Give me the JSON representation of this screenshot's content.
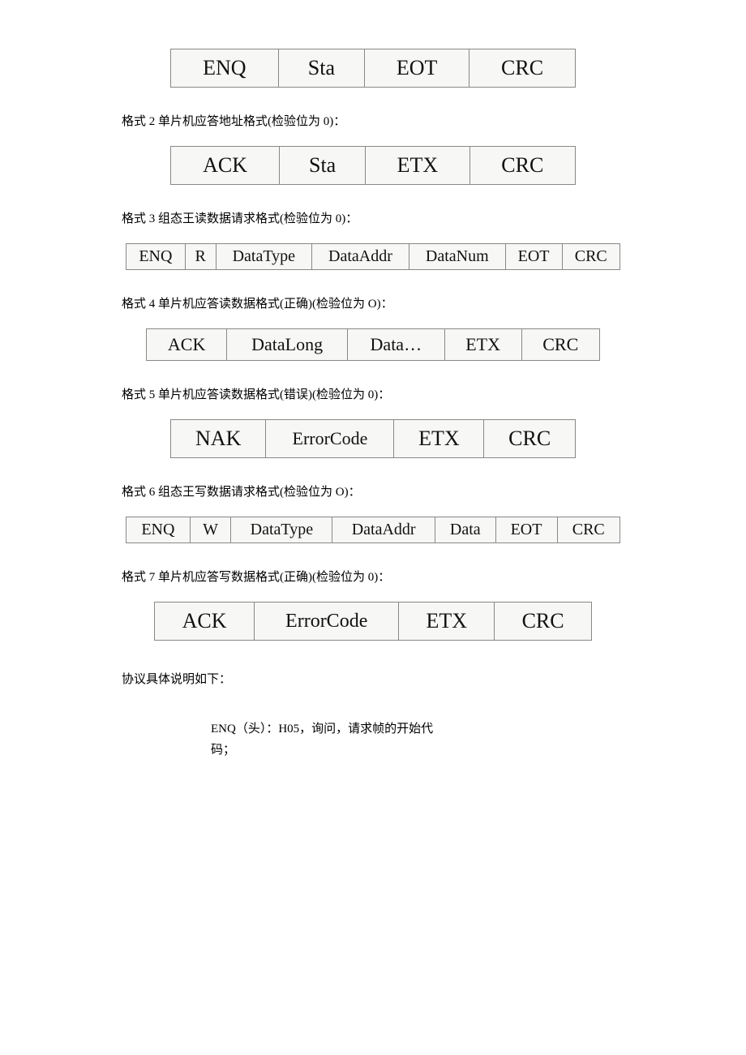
{
  "tables": {
    "t1": {
      "cells": [
        "ENQ",
        "Sta",
        "EOT",
        "CRC"
      ]
    },
    "t2": {
      "cells": [
        "ACK",
        "Sta",
        "ETX",
        "CRC"
      ]
    },
    "t3": {
      "cells": [
        "ENQ",
        "R",
        "DataType",
        "DataAddr",
        "DataNum",
        "EOT",
        "CRC"
      ]
    },
    "t4": {
      "cells": [
        "ACK",
        "DataLong",
        "Data…",
        "ETX",
        "CRC"
      ]
    },
    "t5": {
      "cells": [
        "NAK",
        "ErrorCode",
        "ETX",
        "CRC"
      ]
    },
    "t6": {
      "cells": [
        "ENQ",
        "W",
        "DataType",
        "DataAddr",
        "Data",
        "EOT",
        "CRC"
      ]
    },
    "t7": {
      "cells": [
        "ACK",
        "ErrorCode",
        "ETX",
        "CRC"
      ]
    }
  },
  "captions": {
    "c2": "格式 2 单片机应答地址格式(检验位为 0)：",
    "c3": "格式 3 组态王读数据请求格式(检验位为 0)：",
    "c4": "格式 4 单片机应答读数据格式(正确)(检验位为 O)：",
    "c5": "格式 5 单片机应答读数据格式(错误)(检验位为 0)：",
    "c6": "格式 6 组态王写数据请求格式(检验位为 O)：",
    "c7": "格式 7 单片机应答写数据格式(正确)(检验位为 0)："
  },
  "footer": {
    "label": "协议具体说明如下：",
    "line1": "ENQ（头）：H05，询问，请求帧的开始代",
    "line2": "码；"
  }
}
